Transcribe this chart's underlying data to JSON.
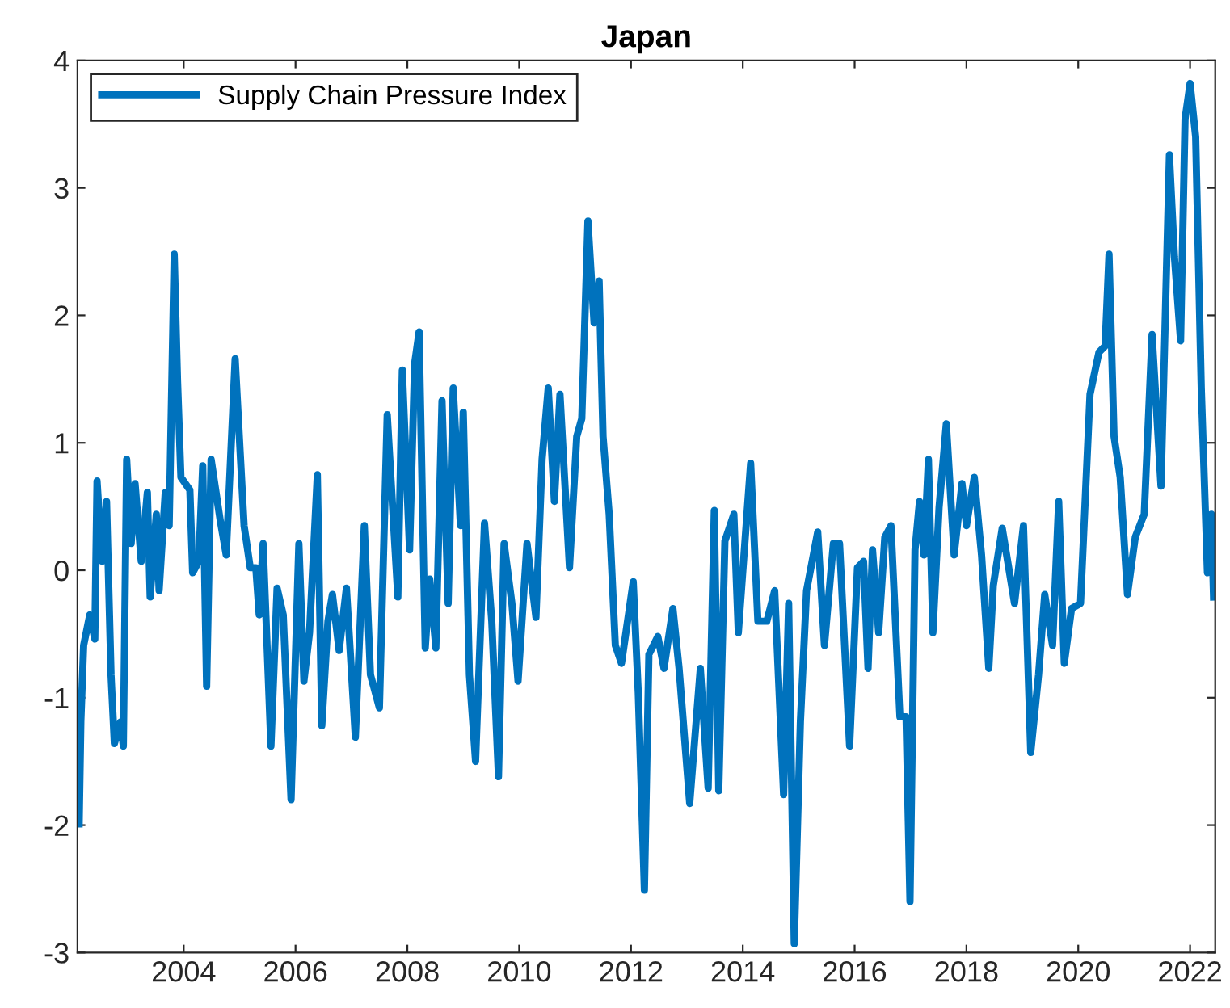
{
  "chart_data": {
    "type": "line",
    "title": "Japan",
    "xlim": [
      2002.1,
      2022.45
    ],
    "ylim": [
      -3,
      4
    ],
    "xticks": [
      2004,
      2006,
      2008,
      2010,
      2012,
      2014,
      2016,
      2018,
      2020,
      2022
    ],
    "yticks": [
      -3,
      -2,
      -1,
      0,
      1,
      2,
      3,
      4
    ],
    "grid": false,
    "legend": "top left",
    "marker": "none",
    "line_style": "solid",
    "series": [
      {
        "name": "Supply Chain Pressure Index",
        "color": "#0072bd",
        "x": [
          2002.13,
          2002.16,
          2002.21,
          2002.32,
          2002.41,
          2002.45,
          2002.54,
          2002.62,
          2002.7,
          2002.76,
          2002.87,
          2002.92,
          2002.98,
          2003.06,
          2003.13,
          2003.24,
          2003.35,
          2003.4,
          2003.51,
          2003.56,
          2003.67,
          2003.74,
          2003.83,
          2003.89,
          2003.95,
          2004.11,
          2004.16,
          2004.27,
          2004.34,
          2004.41,
          2004.49,
          2004.65,
          2004.76,
          2004.92,
          2005.08,
          2005.19,
          2005.29,
          2005.35,
          2005.42,
          2005.56,
          2005.67,
          2005.78,
          2005.92,
          2006.06,
          2006.15,
          2006.25,
          2006.39,
          2006.47,
          2006.58,
          2006.66,
          2006.78,
          2006.91,
          2007.07,
          2007.23,
          2007.34,
          2007.5,
          2007.64,
          2007.83,
          2007.91,
          2008.04,
          2008.13,
          2008.21,
          2008.32,
          2008.4,
          2008.51,
          2008.62,
          2008.73,
          2008.82,
          2008.95,
          2009.0,
          2009.11,
          2009.22,
          2009.38,
          2009.51,
          2009.63,
          2009.73,
          2009.87,
          2009.98,
          2010.14,
          2010.3,
          2010.41,
          2010.52,
          2010.63,
          2010.73,
          2010.9,
          2011.03,
          2011.12,
          2011.23,
          2011.34,
          2011.43,
          2011.5,
          2011.61,
          2011.72,
          2011.83,
          2012.04,
          2012.13,
          2012.24,
          2012.32,
          2012.48,
          2012.59,
          2012.75,
          2012.86,
          2013.05,
          2013.24,
          2013.38,
          2013.49,
          2013.57,
          2013.68,
          2013.84,
          2013.92,
          2014.14,
          2014.27,
          2014.43,
          2014.57,
          2014.73,
          2014.82,
          2014.92,
          2015.03,
          2015.14,
          2015.34,
          2015.46,
          2015.62,
          2015.73,
          2015.91,
          2016.05,
          2016.16,
          2016.24,
          2016.32,
          2016.43,
          2016.54,
          2016.65,
          2016.81,
          2016.92,
          2016.99,
          2017.08,
          2017.16,
          2017.24,
          2017.32,
          2017.4,
          2017.51,
          2017.64,
          2017.78,
          2017.92,
          2018.0,
          2018.14,
          2018.27,
          2018.4,
          2018.48,
          2018.64,
          2018.86,
          2019.02,
          2019.15,
          2019.29,
          2019.4,
          2019.54,
          2019.65,
          2019.75,
          2019.88,
          2020.04,
          2020.21,
          2020.37,
          2020.48,
          2020.55,
          2020.64,
          2020.75,
          2020.88,
          2021.02,
          2021.18,
          2021.32,
          2021.48,
          2021.63,
          2021.72,
          2021.83,
          2021.91,
          2022.0,
          2022.1,
          2022.2,
          2022.31,
          2022.38,
          2022.42
        ],
        "values": [
          -1.99,
          -1.19,
          -0.59,
          -0.35,
          -0.54,
          0.7,
          0.07,
          0.54,
          -0.82,
          -1.36,
          -1.19,
          -1.38,
          0.87,
          0.21,
          0.68,
          0.07,
          0.61,
          -0.21,
          0.44,
          -0.16,
          0.61,
          0.35,
          2.48,
          1.48,
          0.73,
          0.63,
          -0.02,
          0.07,
          0.82,
          -0.91,
          0.87,
          0.4,
          0.12,
          1.66,
          0.35,
          0.02,
          0.02,
          -0.35,
          0.21,
          -1.38,
          -0.14,
          -0.35,
          -1.8,
          0.21,
          -0.87,
          -0.49,
          0.75,
          -1.22,
          -0.4,
          -0.19,
          -0.63,
          -0.14,
          -1.31,
          0.35,
          -0.82,
          -1.08,
          1.22,
          -0.21,
          1.57,
          0.16,
          1.62,
          1.87,
          -0.61,
          -0.07,
          -0.61,
          1.33,
          -0.26,
          1.43,
          0.35,
          1.24,
          -0.82,
          -1.5,
          0.37,
          -0.4,
          -1.62,
          0.21,
          -0.26,
          -0.87,
          0.21,
          -0.37,
          0.87,
          1.43,
          0.54,
          1.38,
          0.02,
          1.05,
          1.19,
          2.74,
          1.94,
          2.27,
          1.05,
          0.44,
          -0.59,
          -0.73,
          -0.09,
          -0.96,
          -2.51,
          -0.66,
          -0.52,
          -0.77,
          -0.3,
          -0.77,
          -1.83,
          -0.77,
          -1.71,
          0.47,
          -1.73,
          0.23,
          0.44,
          -0.49,
          0.84,
          -0.4,
          -0.4,
          -0.16,
          -1.76,
          -0.26,
          -2.93,
          -1.19,
          -0.16,
          0.3,
          -0.59,
          0.21,
          0.21,
          -1.38,
          0.02,
          0.07,
          -0.77,
          0.16,
          -0.49,
          0.26,
          0.35,
          -1.15,
          -1.15,
          -2.6,
          0.16,
          0.54,
          0.12,
          0.87,
          -0.49,
          0.49,
          1.15,
          0.12,
          0.68,
          0.35,
          0.73,
          0.12,
          -0.77,
          -0.12,
          0.33,
          -0.26,
          0.35,
          -1.43,
          -0.82,
          -0.19,
          -0.59,
          0.54,
          -0.73,
          -0.3,
          -0.26,
          1.38,
          1.71,
          1.76,
          2.48,
          1.05,
          0.73,
          -0.19,
          0.26,
          0.44,
          1.85,
          0.66,
          3.26,
          2.46,
          1.8,
          3.54,
          3.82,
          3.4,
          1.43,
          -0.02,
          0.44,
          -0.21
        ]
      }
    ]
  }
}
